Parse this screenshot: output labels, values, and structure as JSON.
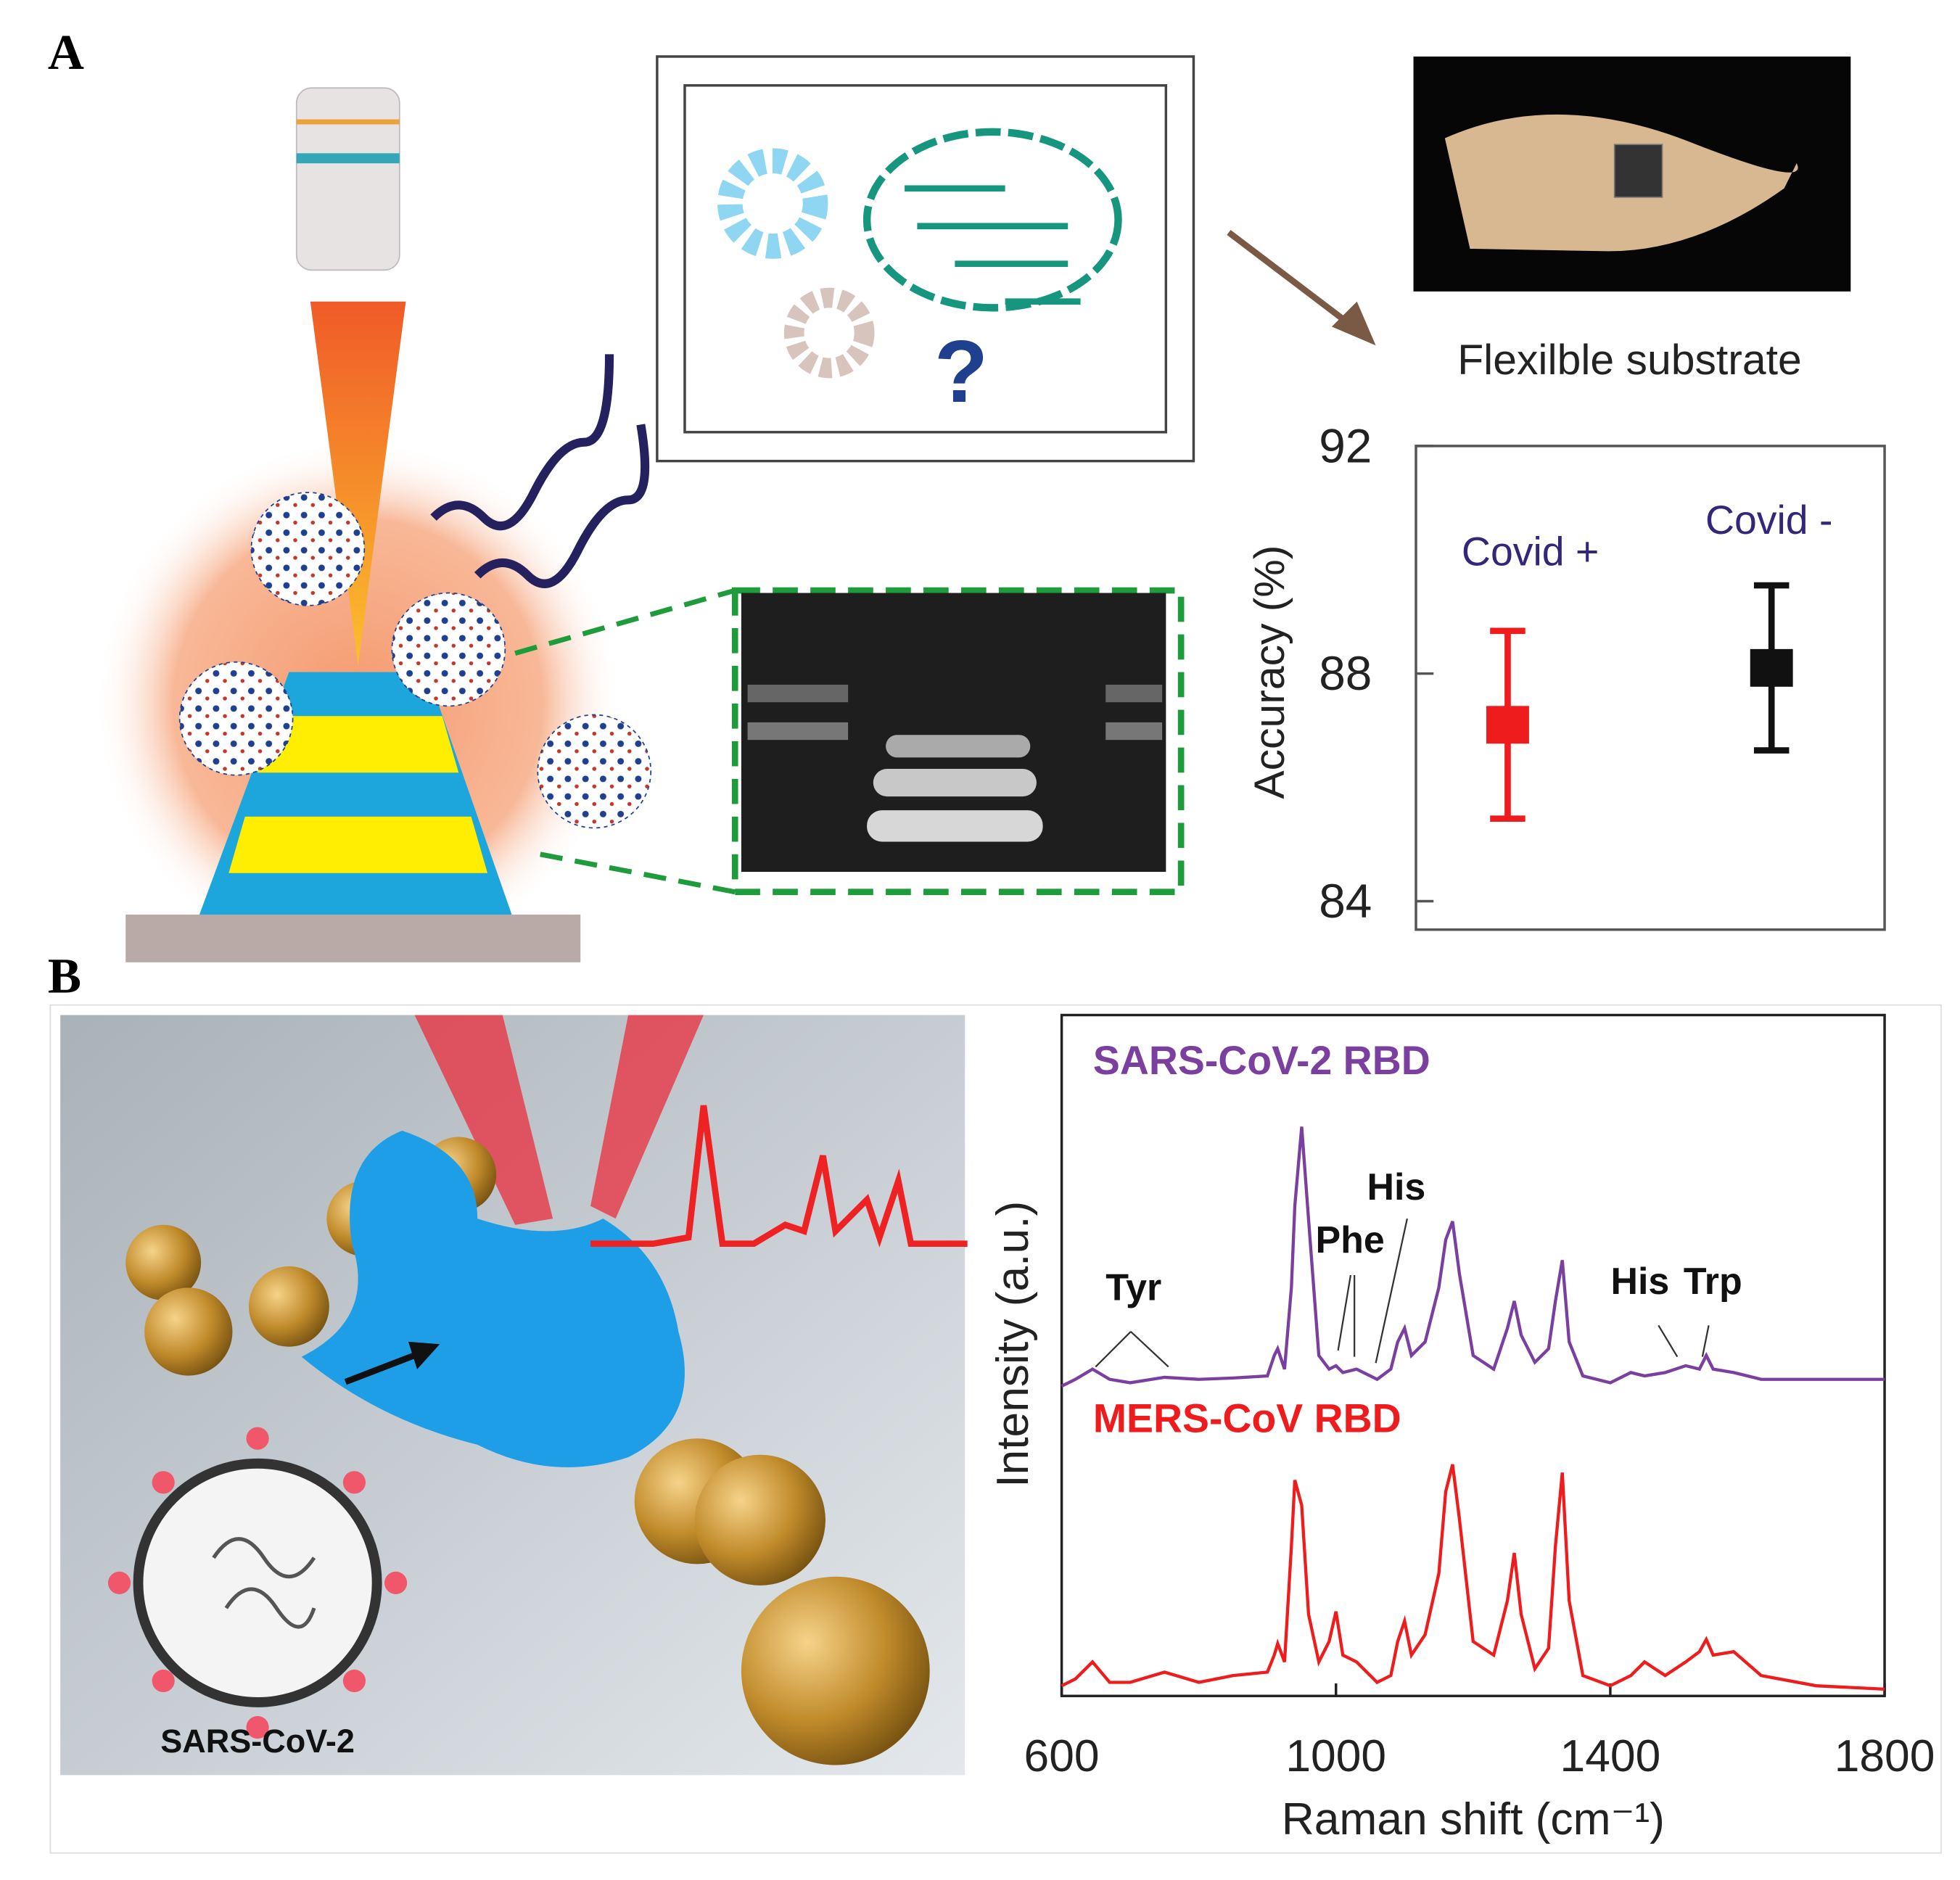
{
  "panels": {
    "a": "A",
    "b": "B",
    "virus_label": "SARS-CoV-2",
    "icon_text": "?"
  },
  "chart_data": [
    {
      "type": "errorbar",
      "title": "Flexilble substrate",
      "y_label": "Accuracy (%)",
      "categories": [
        "Covid +",
        "Covid -"
      ],
      "values": [
        87.1,
        88.1
      ],
      "errors": [
        1.65,
        1.45
      ],
      "colors": [
        "#ee1c1c",
        "#111111"
      ],
      "label_color": "#33277a",
      "ylim": [
        83.5,
        92
      ],
      "yticks": [
        84,
        88,
        92
      ]
    },
    {
      "type": "line",
      "x_label": "Raman shift (cm⁻¹)",
      "y_label": "Intensity (a.u.)",
      "x": [
        600,
        620,
        645,
        670,
        700,
        750,
        800,
        850,
        900,
        910,
        915,
        925,
        935,
        940,
        950,
        960,
        975,
        990,
        1000,
        1010,
        1030,
        1060,
        1080,
        1090,
        1100,
        1110,
        1130,
        1150,
        1160,
        1170,
        1180,
        1200,
        1230,
        1250,
        1260,
        1270,
        1290,
        1310,
        1320,
        1330,
        1340,
        1360,
        1400,
        1430,
        1450,
        1480,
        1510,
        1530,
        1540,
        1550,
        1580,
        1620,
        1700,
        1800
      ],
      "series": [
        {
          "name": "SARS-CoV-2 RBD",
          "color": "#7b3fa0",
          "values": [
            45.5,
            46.5,
            48,
            46.5,
            46,
            46.8,
            46.5,
            46.7,
            47,
            50,
            51,
            48,
            60,
            72,
            83.6,
            70,
            50,
            48,
            48.5,
            47.5,
            48,
            46.5,
            48,
            52,
            54,
            50,
            52,
            60,
            67,
            69.7,
            62,
            50,
            48,
            54,
            58,
            53,
            49,
            51,
            58,
            64,
            52,
            47,
            46,
            47.5,
            47,
            47.5,
            48.5,
            48,
            50,
            48,
            47.5,
            46.5,
            46.5,
            46.5
          ]
        },
        {
          "name": "MERS-CoV RBD",
          "color": "#ee1c1c",
          "values": [
            1.5,
            2.5,
            5,
            2,
            2,
            3.5,
            2,
            3,
            3.5,
            6,
            7.7,
            5,
            22,
            31.7,
            28,
            12,
            5,
            8,
            12.4,
            6,
            5,
            2,
            3,
            8,
            11,
            6,
            9,
            18,
            30,
            34,
            26,
            8,
            6,
            14,
            21,
            12,
            4,
            7,
            22,
            32.8,
            14,
            3,
            1.5,
            3,
            5,
            3,
            5,
            6.5,
            8.3,
            6,
            6.5,
            3,
            1.5,
            1
          ]
        }
      ],
      "annotations": [
        "Tyr",
        "Phe",
        "His",
        "His",
        "Trp"
      ],
      "xlim": [
        600,
        1800
      ],
      "xticks": [
        600,
        1000,
        1400,
        1800
      ],
      "ylim": [
        0,
        100
      ]
    }
  ]
}
